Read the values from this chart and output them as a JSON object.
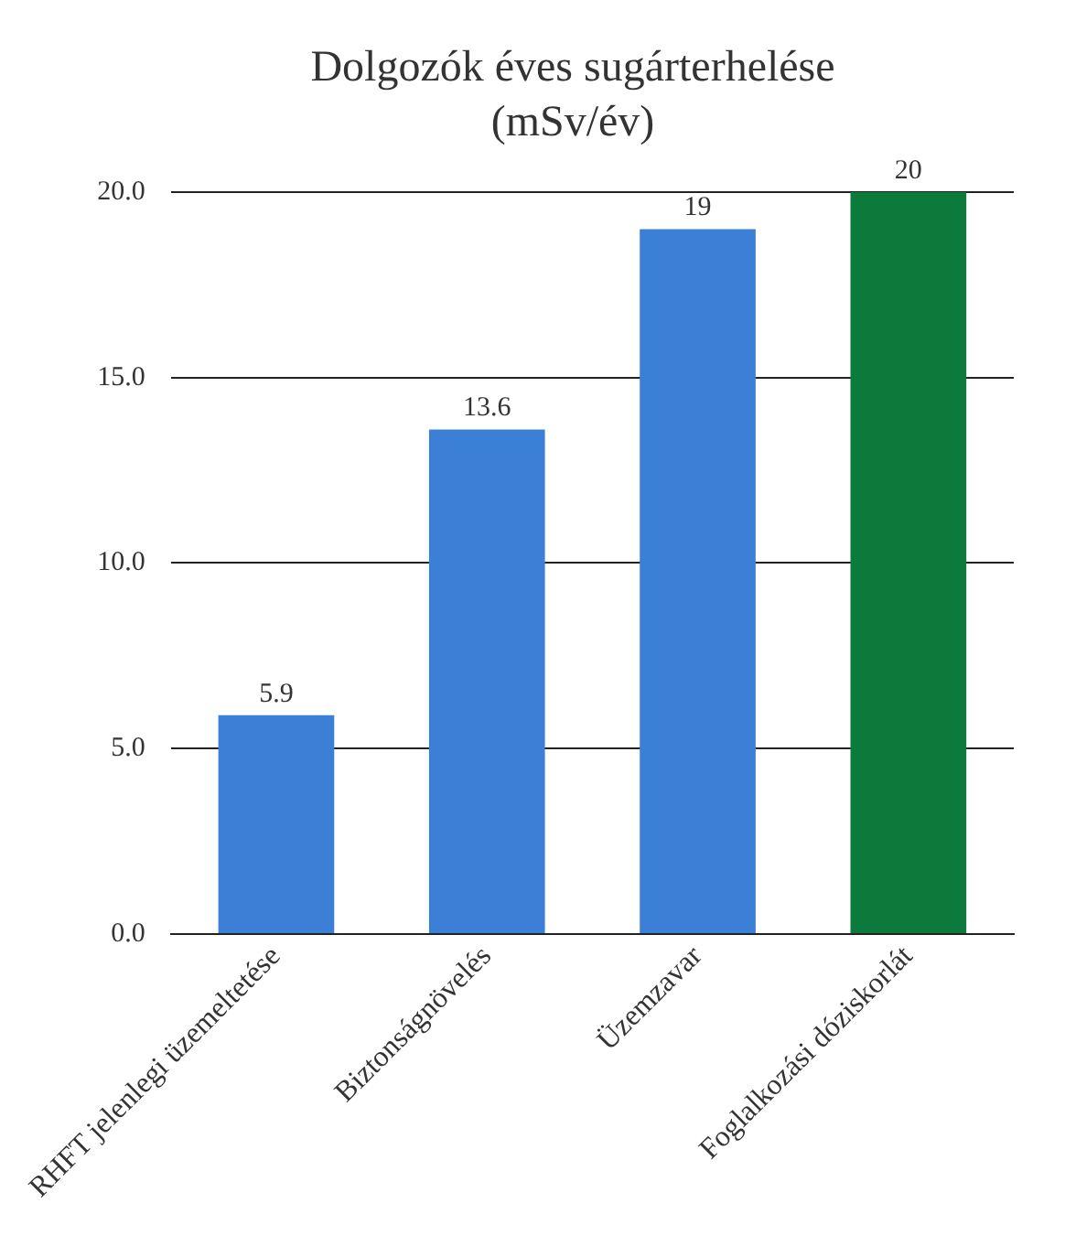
{
  "chart_data": {
    "type": "bar",
    "title": "Dolgozók éves sugárterhelése (mSv/év)",
    "categories": [
      "RHFT jelenlegi üzemeltetése",
      "Biztonságnövelés",
      "Üzemzavar",
      "Foglalkozási dóziskorlát"
    ],
    "values": [
      5.9,
      13.6,
      19,
      20
    ],
    "colors": [
      "#3b7fd6",
      "#3b7fd6",
      "#3b7fd6",
      "#0b7a3b"
    ],
    "ylim": [
      0,
      20
    ],
    "yticks": [
      {
        "value": 0,
        "label": "0.0"
      },
      {
        "value": 5,
        "label": "5.0"
      },
      {
        "value": 10,
        "label": "10.0"
      },
      {
        "value": 15,
        "label": "15.0"
      },
      {
        "value": 20,
        "label": "20.0"
      }
    ],
    "grid": "y",
    "data_labels": true,
    "legend": false
  }
}
